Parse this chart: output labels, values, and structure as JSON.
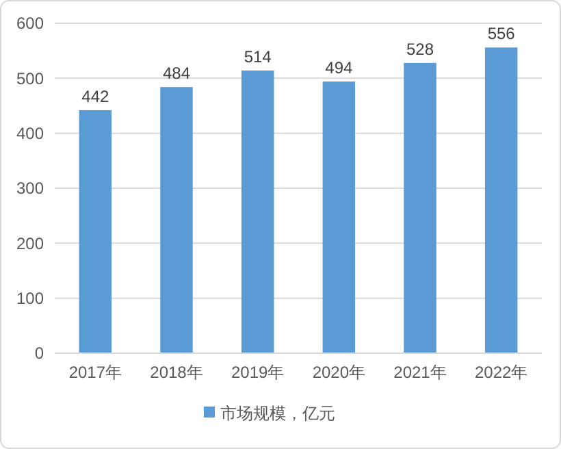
{
  "chart_data": {
    "type": "bar",
    "categories": [
      "2017年",
      "2018年",
      "2019年",
      "2020年",
      "2021年",
      "2022年"
    ],
    "series": [
      {
        "name": "市场规模，亿元",
        "color": "#5b9bd5",
        "values": [
          442,
          484,
          514,
          494,
          528,
          556
        ]
      }
    ],
    "ylim": [
      0,
      600
    ],
    "yticks": [
      0,
      100,
      200,
      300,
      400,
      500,
      600
    ],
    "grid": "y",
    "legend": "bottom",
    "data_labels": true
  }
}
